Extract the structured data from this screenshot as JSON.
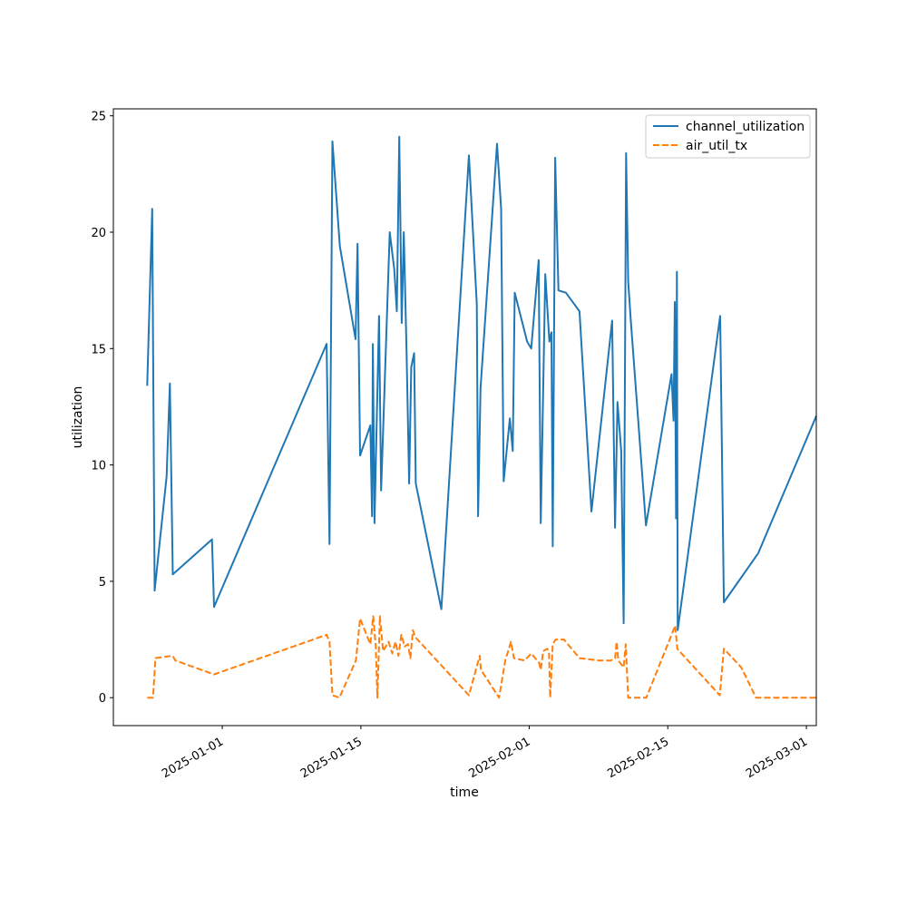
{
  "chart_data": {
    "type": "line",
    "xlabel": "time",
    "ylabel": "utilization",
    "x_type": "date",
    "xlim": [
      "2024-12-21",
      "2025-03-02"
    ],
    "ylim": [
      -1.2,
      25.3
    ],
    "x_ticks": [
      "2025-01-01",
      "2025-01-15",
      "2025-02-01",
      "2025-02-15",
      "2025-03-01"
    ],
    "y_ticks": [
      0,
      5,
      10,
      15,
      20,
      25
    ],
    "legend": {
      "position": "top-right"
    },
    "grid": false,
    "series": [
      {
        "name": "channel_utilization",
        "color": "#1f77b4",
        "style": "solid",
        "points": [
          [
            "2024-12-24 10:00",
            13.4
          ],
          [
            "2024-12-24 22:00",
            21.0
          ],
          [
            "2024-12-25 04:00",
            4.6
          ],
          [
            "2024-12-26 09:00",
            9.5
          ],
          [
            "2024-12-26 17:00",
            13.5
          ],
          [
            "2024-12-27 00:00",
            5.3
          ],
          [
            "2024-12-30 23:00",
            6.8
          ],
          [
            "2024-12-31 04:00",
            3.9
          ],
          [
            "2025-01-11 13:00",
            15.2
          ],
          [
            "2025-01-11 20:00",
            6.6
          ],
          [
            "2025-01-12 03:00",
            23.9
          ],
          [
            "2025-01-12 21:00",
            19.4
          ],
          [
            "2025-01-14 11:00",
            15.4
          ],
          [
            "2025-01-14 16:00",
            19.5
          ],
          [
            "2025-01-14 22:00",
            10.4
          ],
          [
            "2025-01-15 23:00",
            11.7
          ],
          [
            "2025-01-16 03:00",
            7.8
          ],
          [
            "2025-01-16 05:00",
            15.2
          ],
          [
            "2025-01-16 09:00",
            7.5
          ],
          [
            "2025-01-16 20:00",
            16.4
          ],
          [
            "2025-01-17 01:00",
            8.9
          ],
          [
            "2025-01-17 22:00",
            20.0
          ],
          [
            "2025-01-18 09:00",
            18.4
          ],
          [
            "2025-01-18 15:00",
            16.6
          ],
          [
            "2025-01-18 21:00",
            24.1
          ],
          [
            "2025-01-19 03:00",
            16.1
          ],
          [
            "2025-01-19 08:00",
            20.0
          ],
          [
            "2025-01-19 15:00",
            14.6
          ],
          [
            "2025-01-19 21:00",
            9.2
          ],
          [
            "2025-01-20 02:00",
            14.2
          ],
          [
            "2025-01-20 09:00",
            14.8
          ],
          [
            "2025-01-20 13:00",
            9.2
          ],
          [
            "2025-01-23 03:00",
            3.8
          ],
          [
            "2025-01-25 22:00",
            23.3
          ],
          [
            "2025-01-26 17:00",
            16.9
          ],
          [
            "2025-01-26 20:00",
            7.8
          ],
          [
            "2025-01-27 02:00",
            13.3
          ],
          [
            "2025-01-28 18:00",
            23.8
          ],
          [
            "2025-01-29 04:00",
            21.0
          ],
          [
            "2025-01-29 10:00",
            9.3
          ],
          [
            "2025-01-30 01:00",
            12.0
          ],
          [
            "2025-01-30 08:00",
            10.6
          ],
          [
            "2025-01-30 13:00",
            17.4
          ],
          [
            "2025-01-31 19:00",
            15.3
          ],
          [
            "2025-02-01 05:00",
            15.0
          ],
          [
            "2025-02-01 23:00",
            18.8
          ],
          [
            "2025-02-02 04:00",
            7.5
          ],
          [
            "2025-02-02 15:00",
            18.2
          ],
          [
            "2025-02-03 01:00",
            15.3
          ],
          [
            "2025-02-03 06:00",
            15.7
          ],
          [
            "2025-02-03 09:00",
            6.5
          ],
          [
            "2025-02-03 15:00",
            23.2
          ],
          [
            "2025-02-03 23:00",
            17.5
          ],
          [
            "2025-02-04 17:00",
            17.4
          ],
          [
            "2025-02-06 02:00",
            16.6
          ],
          [
            "2025-02-07 07:00",
            8.0
          ],
          [
            "2025-02-09 09:00",
            16.2
          ],
          [
            "2025-02-09 16:00",
            7.3
          ],
          [
            "2025-02-09 22:00",
            12.7
          ],
          [
            "2025-02-10 07:00",
            10.6
          ],
          [
            "2025-02-10 13:00",
            3.2
          ],
          [
            "2025-02-10 19:00",
            23.4
          ],
          [
            "2025-02-11 00:00",
            17.9
          ],
          [
            "2025-02-11 06:00",
            16.3
          ],
          [
            "2025-02-12 19:00",
            7.4
          ],
          [
            "2025-02-15 09:00",
            13.9
          ],
          [
            "2025-02-15 14:00",
            11.9
          ],
          [
            "2025-02-15 17:00",
            17.0
          ],
          [
            "2025-02-15 20:00",
            7.7
          ],
          [
            "2025-02-15 22:00",
            18.3
          ],
          [
            "2025-02-16 00:00",
            2.9
          ],
          [
            "2025-02-20 07:00",
            16.4
          ],
          [
            "2025-02-20 16:00",
            4.1
          ],
          [
            "2025-02-24 03:00",
            6.2
          ],
          [
            "2025-03-02 00:00",
            12.1
          ]
        ]
      },
      {
        "name": "air_util_tx",
        "color": "#ff7f0e",
        "style": "dashed",
        "points": [
          [
            "2024-12-24 10:00",
            0.0
          ],
          [
            "2024-12-25 00:00",
            0.0
          ],
          [
            "2024-12-25 06:00",
            1.7
          ],
          [
            "2024-12-27 00:00",
            1.8
          ],
          [
            "2024-12-27 06:00",
            1.6
          ],
          [
            "2024-12-31 04:00",
            1.0
          ],
          [
            "2025-01-11 13:00",
            2.7
          ],
          [
            "2025-01-11 20:00",
            2.4
          ],
          [
            "2025-01-12 03:00",
            0.1
          ],
          [
            "2025-01-12 20:00",
            0.0
          ],
          [
            "2025-01-14 12:00",
            1.6
          ],
          [
            "2025-01-14 22:00",
            3.4
          ],
          [
            "2025-01-15 23:00",
            2.3
          ],
          [
            "2025-01-16 06:00",
            3.5
          ],
          [
            "2025-01-16 12:00",
            2.2
          ],
          [
            "2025-01-16 16:00",
            0.0
          ],
          [
            "2025-01-16 22:00",
            3.5
          ],
          [
            "2025-01-17 06:00",
            2.0
          ],
          [
            "2025-01-17 19:00",
            2.4
          ],
          [
            "2025-01-18 04:00",
            1.9
          ],
          [
            "2025-01-18 12:00",
            2.4
          ],
          [
            "2025-01-18 19:00",
            1.8
          ],
          [
            "2025-01-19 02:00",
            2.7
          ],
          [
            "2025-01-19 10:00",
            2.2
          ],
          [
            "2025-01-19 18:00",
            2.3
          ],
          [
            "2025-01-20 00:00",
            1.7
          ],
          [
            "2025-01-20 06:00",
            2.9
          ],
          [
            "2025-01-20 12:00",
            2.6
          ],
          [
            "2025-01-25 22:00",
            0.1
          ],
          [
            "2025-01-27 00:00",
            1.8
          ],
          [
            "2025-01-27 03:00",
            1.2
          ],
          [
            "2025-01-28 23:00",
            0.0
          ],
          [
            "2025-01-29 14:00",
            1.6
          ],
          [
            "2025-01-30 04:00",
            2.4
          ],
          [
            "2025-01-30 11:00",
            1.7
          ],
          [
            "2025-01-31 13:00",
            1.6
          ],
          [
            "2025-02-01 05:00",
            1.9
          ],
          [
            "2025-02-02 00:00",
            1.5
          ],
          [
            "2025-02-02 04:00",
            1.2
          ],
          [
            "2025-02-02 10:00",
            2.0
          ],
          [
            "2025-02-02 20:00",
            2.1
          ],
          [
            "2025-02-03 00:00",
            1.9
          ],
          [
            "2025-02-03 03:00",
            0.0
          ],
          [
            "2025-02-03 09:00",
            2.3
          ],
          [
            "2025-02-03 16:00",
            2.5
          ],
          [
            "2025-02-04 12:00",
            2.5
          ],
          [
            "2025-02-06 02:00",
            1.7
          ],
          [
            "2025-02-08 00:00",
            1.6
          ],
          [
            "2025-02-09 06:00",
            1.6
          ],
          [
            "2025-02-09 16:00",
            1.7
          ],
          [
            "2025-02-09 20:00",
            2.4
          ],
          [
            "2025-02-10 00:00",
            1.6
          ],
          [
            "2025-02-10 13:00",
            1.3
          ],
          [
            "2025-02-10 18:00",
            2.3
          ],
          [
            "2025-02-11 00:00",
            0.0
          ],
          [
            "2025-02-12 20:00",
            0.0
          ],
          [
            "2025-02-15 18:00",
            3.1
          ],
          [
            "2025-02-15 23:00",
            2.1
          ],
          [
            "2025-02-20 06:00",
            0.1
          ],
          [
            "2025-02-20 16:00",
            2.1
          ],
          [
            "2025-02-22 10:00",
            1.3
          ],
          [
            "2025-02-23 22:00",
            0.0
          ],
          [
            "2025-03-02 00:00",
            0.0
          ]
        ]
      }
    ]
  }
}
